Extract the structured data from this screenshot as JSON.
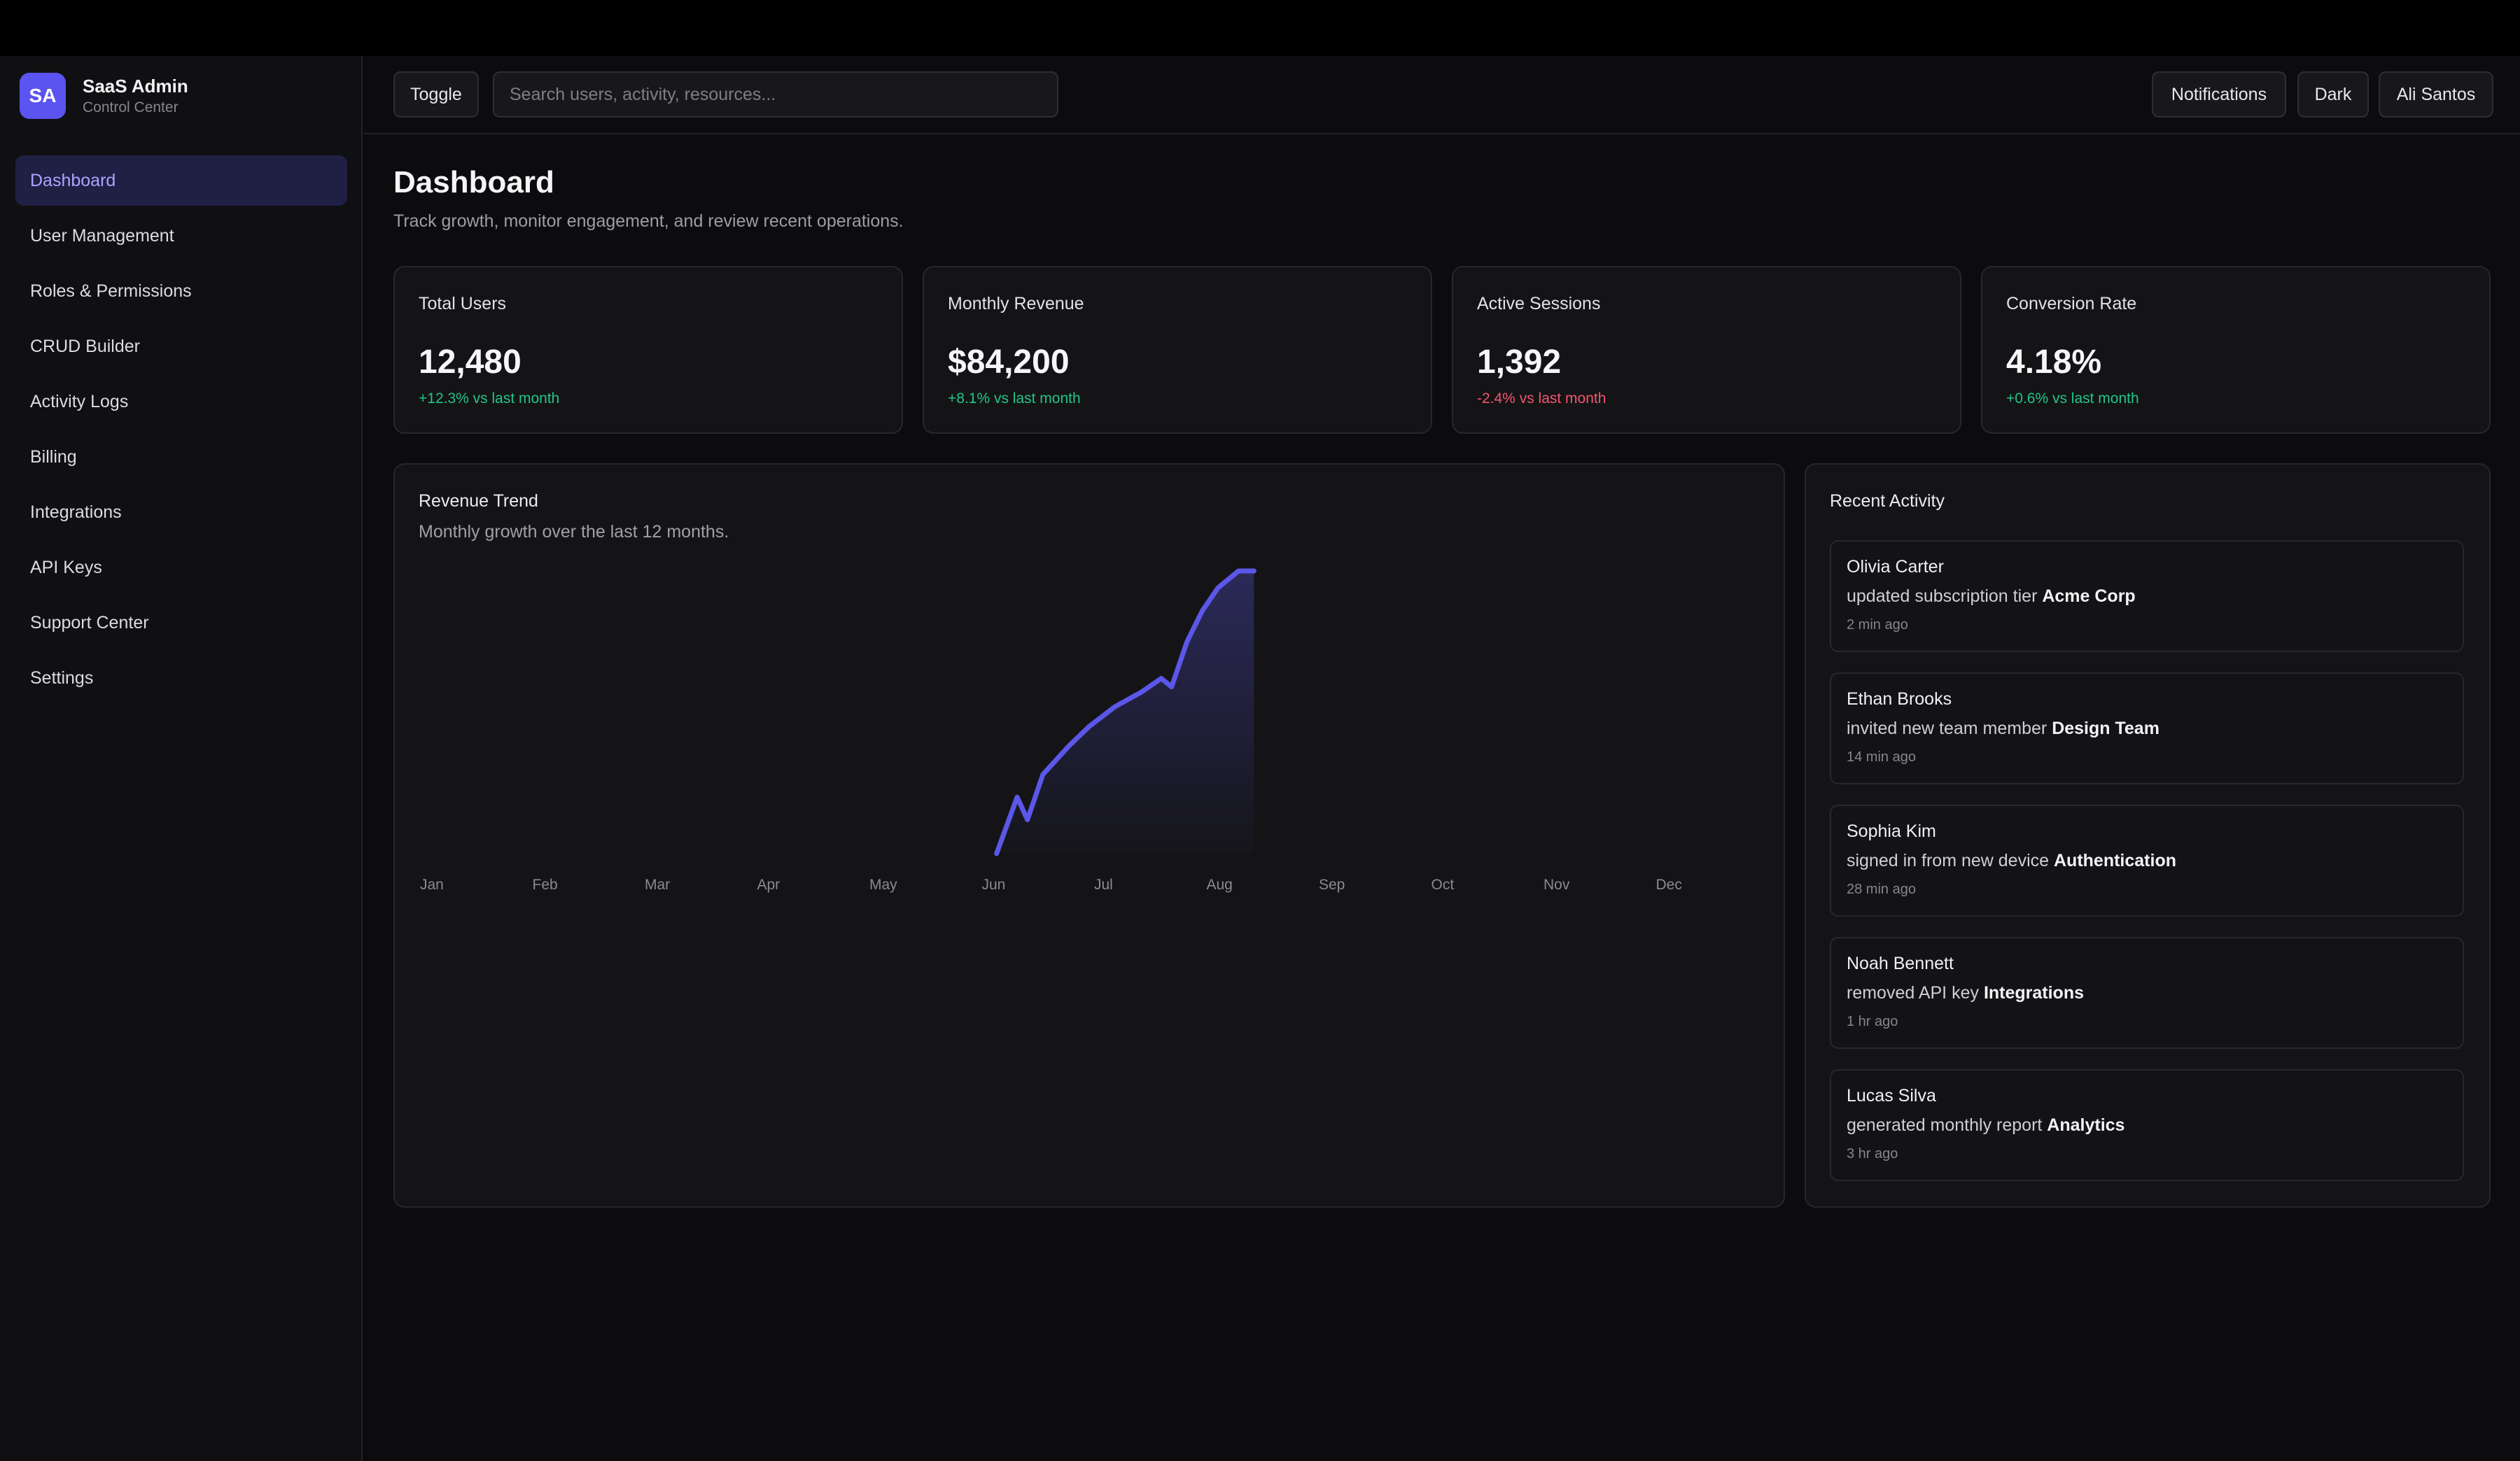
{
  "brand": {
    "initials": "SA",
    "name": "SaaS Admin",
    "subtitle": "Control Center"
  },
  "sidebar": {
    "items": [
      {
        "label": "Dashboard",
        "active": true
      },
      {
        "label": "User Management"
      },
      {
        "label": "Roles & Permissions"
      },
      {
        "label": "CRUD Builder"
      },
      {
        "label": "Activity Logs"
      },
      {
        "label": "Billing"
      },
      {
        "label": "Integrations"
      },
      {
        "label": "API Keys"
      },
      {
        "label": "Support Center"
      },
      {
        "label": "Settings"
      }
    ]
  },
  "topbar": {
    "toggle_label": "Toggle",
    "search_placeholder": "Search users, activity, resources...",
    "notifications_label": "Notifications",
    "theme_label": "Dark",
    "user_label": "Ali Santos"
  },
  "page": {
    "title": "Dashboard",
    "subtitle": "Track growth, monitor engagement, and review recent operations."
  },
  "stats": [
    {
      "label": "Total Users",
      "value": "12,480",
      "delta": "+12.3% vs last month",
      "trend": "up"
    },
    {
      "label": "Monthly Revenue",
      "value": "$84,200",
      "delta": "+8.1% vs last month",
      "trend": "up"
    },
    {
      "label": "Active Sessions",
      "value": "1,392",
      "delta": "-2.4% vs last month",
      "trend": "down"
    },
    {
      "label": "Conversion Rate",
      "value": "4.18%",
      "delta": "+0.6% vs last month",
      "trend": "up"
    }
  ],
  "revenue_panel": {
    "title": "Revenue Trend",
    "subtitle": "Monthly growth over the last 12 months."
  },
  "chart_data": {
    "type": "area",
    "categories": [
      "Jan",
      "Feb",
      "Mar",
      "Apr",
      "May",
      "Jun",
      "Jul",
      "Aug",
      "Sep",
      "Oct",
      "Nov",
      "Dec"
    ],
    "x": [
      5.6,
      5.8,
      5.9,
      6.05,
      6.3,
      6.5,
      6.75,
      7.0,
      7.2,
      7.3,
      7.45,
      7.6,
      7.75,
      7.95,
      8.1
    ],
    "values": [
      0,
      20,
      12,
      28,
      38,
      45,
      52,
      57,
      62,
      59,
      75,
      86,
      94,
      100,
      100
    ],
    "ylim": [
      0,
      100
    ],
    "xlim": [
      0,
      12
    ],
    "grid": false,
    "line_color": "#5b57e8",
    "fill_color": "#5b57e8"
  },
  "activity": {
    "title": "Recent Activity",
    "items": [
      {
        "name": "Olivia Carter",
        "action": "updated subscription tier",
        "target": "Acme Corp",
        "time": "2 min ago"
      },
      {
        "name": "Ethan Brooks",
        "action": "invited new team member",
        "target": "Design Team",
        "time": "14 min ago"
      },
      {
        "name": "Sophia Kim",
        "action": "signed in from new device",
        "target": "Authentication",
        "time": "28 min ago"
      },
      {
        "name": "Noah Bennett",
        "action": "removed API key",
        "target": "Integrations",
        "time": "1 hr ago"
      },
      {
        "name": "Lucas Silva",
        "action": "generated monthly report",
        "target": "Analytics",
        "time": "3 hr ago"
      }
    ]
  }
}
